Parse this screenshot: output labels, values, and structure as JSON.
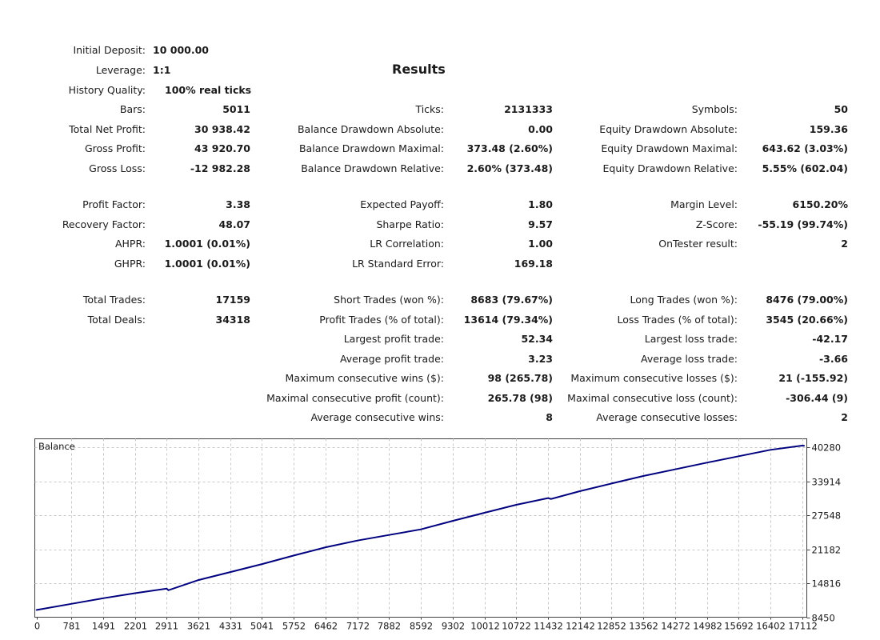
{
  "report": {
    "title": "Results",
    "initial_deposit_label": "Initial Deposit:",
    "initial_deposit": "10 000.00",
    "leverage_label": "Leverage:",
    "leverage": "1:1",
    "history_quality_label": "History Quality:",
    "history_quality": "100% real ticks",
    "col1": [
      {
        "label": "Bars:",
        "value": "5011"
      },
      {
        "label": "Total Net Profit:",
        "value": "30 938.42"
      },
      {
        "label": "Gross Profit:",
        "value": "43 920.70"
      },
      {
        "label": "Gross Loss:",
        "value": "-12 982.28"
      },
      {
        "label": "Profit Factor:",
        "value": "3.38"
      },
      {
        "label": "Recovery Factor:",
        "value": "48.07"
      },
      {
        "label": "AHPR:",
        "value": "1.0001 (0.01%)"
      },
      {
        "label": "GHPR:",
        "value": "1.0001 (0.01%)"
      },
      {
        "label": "Total Trades:",
        "value": "17159"
      },
      {
        "label": "Total Deals:",
        "value": "34318"
      }
    ],
    "col2": [
      {
        "label": "Ticks:",
        "value": "2131333"
      },
      {
        "label": "Balance Drawdown Absolute:",
        "value": "0.00"
      },
      {
        "label": "Balance Drawdown Maximal:",
        "value": "373.48 (2.60%)"
      },
      {
        "label": "Balance Drawdown Relative:",
        "value": "2.60% (373.48)"
      },
      {
        "label": "Expected Payoff:",
        "value": "1.80"
      },
      {
        "label": "Sharpe Ratio:",
        "value": "9.57"
      },
      {
        "label": "LR Correlation:",
        "value": "1.00"
      },
      {
        "label": "LR Standard Error:",
        "value": "169.18"
      },
      {
        "label": "Short Trades (won %):",
        "value": "8683 (79.67%)"
      },
      {
        "label": "Profit Trades (% of total):",
        "value": "13614 (79.34%)"
      },
      {
        "label": "Largest profit trade:",
        "value": "52.34"
      },
      {
        "label": "Average profit trade:",
        "value": "3.23"
      },
      {
        "label": "Maximum consecutive wins ($):",
        "value": "98 (265.78)"
      },
      {
        "label": "Maximal consecutive profit (count):",
        "value": "265.78 (98)"
      },
      {
        "label": "Average consecutive wins:",
        "value": "8"
      }
    ],
    "col3": [
      {
        "label": "Symbols:",
        "value": "50"
      },
      {
        "label": "Equity Drawdown Absolute:",
        "value": "159.36"
      },
      {
        "label": "Equity Drawdown Maximal:",
        "value": "643.62 (3.03%)"
      },
      {
        "label": "Equity Drawdown Relative:",
        "value": "5.55% (602.04)"
      },
      {
        "label": "Margin Level:",
        "value": "6150.20%"
      },
      {
        "label": "Z-Score:",
        "value": "-55.19 (99.74%)"
      },
      {
        "label": "OnTester result:",
        "value": "2"
      },
      {
        "label": "Long Trades (won %):",
        "value": "8476 (79.00%)"
      },
      {
        "label": "Loss Trades (% of total):",
        "value": "3545 (20.66%)"
      },
      {
        "label": "Largest loss trade:",
        "value": "-42.17"
      },
      {
        "label": "Average loss trade:",
        "value": "-3.66"
      },
      {
        "label": "Maximum consecutive losses ($):",
        "value": "21 (-155.92)"
      },
      {
        "label": "Maximal consecutive loss (count):",
        "value": "-306.44 (9)"
      },
      {
        "label": "Average consecutive losses:",
        "value": "2"
      }
    ]
  },
  "chart_data": {
    "type": "line",
    "title": "Balance",
    "x_ticks": [
      "0",
      "781",
      "1491",
      "2201",
      "2911",
      "3621",
      "4331",
      "5041",
      "5752",
      "6462",
      "7172",
      "7882",
      "8592",
      "9302",
      "10012",
      "10722",
      "11432",
      "12142",
      "12852",
      "13562",
      "14272",
      "14982",
      "15692",
      "16402",
      "17112"
    ],
    "y_ticks": [
      "40280",
      "33914",
      "27548",
      "21182",
      "14816",
      "8450"
    ],
    "ylim": [
      8450,
      41870
    ],
    "xlim": [
      0,
      17180
    ],
    "grid": true,
    "series": [
      {
        "color": "#00007f",
        "x": [
          0,
          781,
          1491,
          2201,
          2911,
          2950,
          3621,
          4331,
          5041,
          5752,
          6462,
          7172,
          7882,
          8592,
          9302,
          10012,
          10722,
          11432,
          11500,
          12142,
          12852,
          13562,
          14272,
          14982,
          15692,
          16402,
          17112,
          17159
        ],
        "y": [
          9800,
          10950,
          12000,
          12950,
          13800,
          13500,
          15400,
          16900,
          18400,
          20000,
          21550,
          22800,
          23850,
          24900,
          26500,
          28000,
          29500,
          30750,
          30600,
          32050,
          33500,
          34900,
          36150,
          37400,
          38600,
          39800,
          40600,
          40560
        ]
      }
    ]
  }
}
